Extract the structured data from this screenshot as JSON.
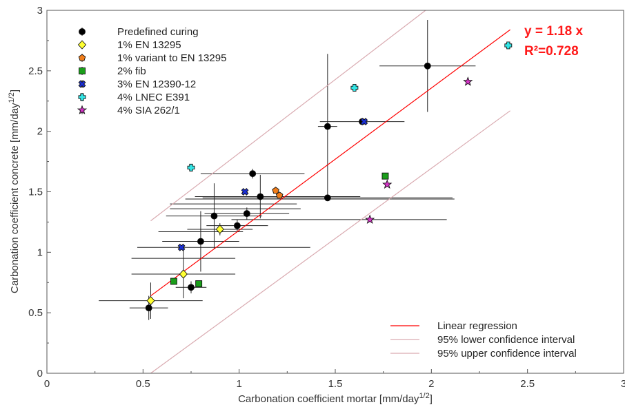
{
  "chart_data": {
    "type": "scatter",
    "xlabel": "Carbonation coefficient mortar [mm/day",
    "xlabel_sup": "1/2",
    "xlabel_end": "]",
    "ylabel": "Carbonation coefficient concrete [mm/day",
    "ylabel_sup": "1/2",
    "ylabel_end": "]",
    "xlim": [
      0,
      3
    ],
    "ylim": [
      0,
      3
    ],
    "xticks": [
      "0",
      "0.5",
      "1",
      "1.5",
      "2",
      "2.5",
      "3"
    ],
    "yticks": [
      "0",
      "0.5",
      "1",
      "1.5",
      "2",
      "2.5",
      "3"
    ],
    "grid": false,
    "legend_position": "top-left",
    "annotations": {
      "equation": "y = 1.18 x",
      "r_squared": "R²=0.728"
    },
    "series": [
      {
        "name": "Predefined curing",
        "marker": "circle",
        "color": "#000000",
        "points": [
          {
            "x": 0.53,
            "y": 0.54,
            "xerr": 0.1,
            "yerr": 0.1
          },
          {
            "x": 0.75,
            "y": 0.71,
            "xerr": 0.08,
            "yerr": 0.05
          },
          {
            "x": 0.8,
            "y": 1.09,
            "xerr": 0.2,
            "yerr": 0.25
          },
          {
            "x": 0.87,
            "y": 1.3,
            "xerr": 0.25,
            "yerr": 0.27
          },
          {
            "x": 0.99,
            "y": 1.22,
            "xerr": 0.16,
            "yerr": 0.05
          },
          {
            "x": 1.04,
            "y": 1.32,
            "xerr": 0.22,
            "yerr": 0.05
          },
          {
            "x": 1.07,
            "y": 1.65,
            "xerr": 0.27,
            "yerr": 0.04
          },
          {
            "x": 1.11,
            "y": 1.46,
            "xerr": 0.3,
            "yerr": 0.18
          },
          {
            "x": 1.46,
            "y": 1.45,
            "xerr": 0.65,
            "yerr": 0.02
          },
          {
            "x": 1.46,
            "y": 2.04,
            "xerr": 0.05,
            "yerr": 0.6
          },
          {
            "x": 1.64,
            "y": 2.08,
            "xerr": 0.22,
            "yerr": 0.02
          },
          {
            "x": 1.98,
            "y": 2.54,
            "xerr": 0.25,
            "yerr": 0.38
          }
        ]
      },
      {
        "name": "1% EN 13295",
        "marker": "diamond",
        "color": "#ffff33",
        "points": [
          {
            "x": 0.54,
            "y": 0.6,
            "xerr": 0.27,
            "yerr": 0.15
          },
          {
            "x": 0.71,
            "y": 0.82,
            "xerr": 0.27,
            "yerr": 0.2
          },
          {
            "x": 0.9,
            "y": 1.19,
            "xerr": 0.17,
            "yerr": 0.05
          }
        ]
      },
      {
        "name": "1% variant to EN 13295",
        "marker": "pentagon",
        "color": "#f07d1a",
        "points": [
          {
            "x": 1.19,
            "y": 1.51,
            "xerr": 0.0,
            "yerr": 0.0
          },
          {
            "x": 1.21,
            "y": 1.47,
            "xerr": 0.0,
            "yerr": 0.0
          }
        ]
      },
      {
        "name": "2% fib",
        "marker": "square",
        "color": "#1a9e1a",
        "points": [
          {
            "x": 0.66,
            "y": 0.76,
            "xerr": 0.0,
            "yerr": 0.0
          },
          {
            "x": 0.79,
            "y": 0.74,
            "xerr": 0.0,
            "yerr": 0.0
          },
          {
            "x": 1.76,
            "y": 1.63,
            "xerr": 0.0,
            "yerr": 0.0
          }
        ]
      },
      {
        "name": "3% EN 12390-12",
        "marker": "cross",
        "color": "#1a2fd6",
        "points": [
          {
            "x": 0.7,
            "y": 1.04,
            "xerr": 0.0,
            "yerr": 0.0
          },
          {
            "x": 1.03,
            "y": 1.5,
            "xerr": 0.0,
            "yerr": 0.0
          },
          {
            "x": 1.65,
            "y": 2.08,
            "xerr": 0.0,
            "yerr": 0.0
          }
        ]
      },
      {
        "name": "4% LNEC E391",
        "marker": "plus",
        "color": "#33e6e6",
        "points": [
          {
            "x": 0.75,
            "y": 1.7,
            "xerr": 0.0,
            "yerr": 0.0
          },
          {
            "x": 1.6,
            "y": 2.36,
            "xerr": 0.0,
            "yerr": 0.0
          },
          {
            "x": 2.4,
            "y": 2.71,
            "xerr": 0.0,
            "yerr": 0.0
          }
        ]
      },
      {
        "name": "4% SIA 262/1",
        "marker": "star",
        "color": "#d633c8",
        "points": [
          {
            "x": 1.68,
            "y": 1.27,
            "xerr": 0.0,
            "yerr": 0.0
          },
          {
            "x": 1.77,
            "y": 1.56,
            "xerr": 0.0,
            "yerr": 0.0
          },
          {
            "x": 2.19,
            "y": 2.41,
            "xerr": 0.0,
            "yerr": 0.0
          }
        ]
      }
    ],
    "extra_error_bars": [
      {
        "x": 0.8,
        "y": 1.17,
        "xerr": 0.22
      },
      {
        "x": 0.98,
        "y": 1.36,
        "xerr": 0.34
      },
      {
        "x": 0.97,
        "y": 1.4,
        "xerr": 0.33
      },
      {
        "x": 0.71,
        "y": 0.95,
        "xerr": 0.27
      },
      {
        "x": 0.92,
        "y": 1.04,
        "xerr": 0.45
      },
      {
        "x": 1.52,
        "y": 1.27,
        "xerr": 0.56
      },
      {
        "x": 1.42,
        "y": 1.44,
        "xerr": 0.7
      },
      {
        "x": 1.2,
        "y": 1.46,
        "xerr": 0.43
      }
    ],
    "lines": [
      {
        "name": "Linear regression",
        "color": "#ff0000",
        "x": [
          0.54,
          2.41
        ],
        "y": [
          0.64,
          2.84
        ]
      },
      {
        "name": "95% lower confidence interval",
        "color": "#d9aab0",
        "x": [
          0.54,
          2.41
        ],
        "y": [
          0.0,
          2.17
        ]
      },
      {
        "name": "95% upper confidence interval",
        "color": "#d9aab0",
        "x": [
          0.54,
          1.97
        ],
        "y": [
          1.26,
          3.0
        ]
      }
    ]
  }
}
